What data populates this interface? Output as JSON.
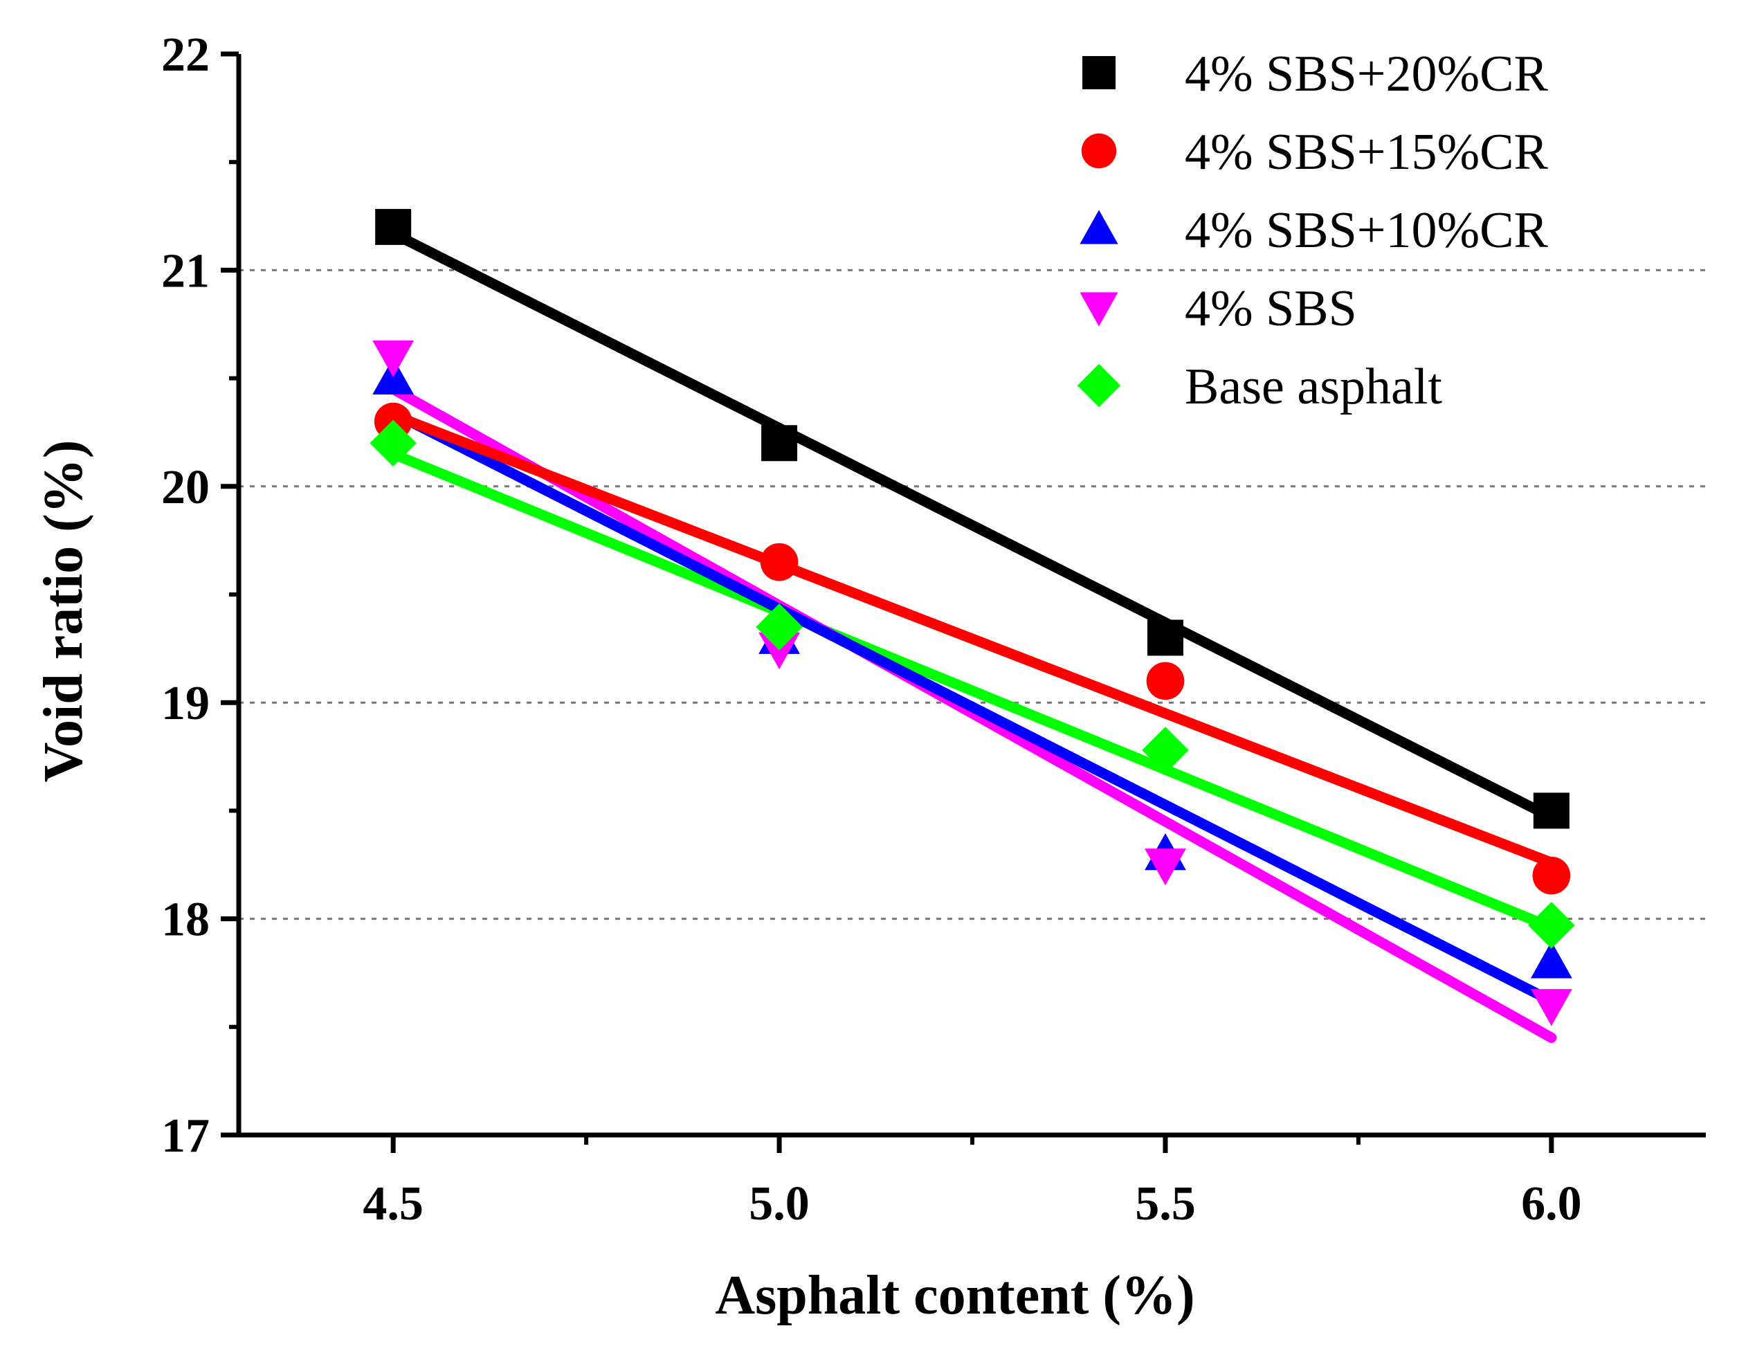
{
  "chart_data": {
    "type": "scatter",
    "title": "",
    "xlabel": "Asphalt content (%)",
    "ylabel": "Void ratio (%)",
    "xlim": [
      4.3,
      6.2
    ],
    "ylim": [
      17,
      22
    ],
    "x_ticks": [
      "4.5",
      "5.0",
      "5.5",
      "6.0"
    ],
    "y_ticks": [
      "17",
      "18",
      "19",
      "20",
      "21",
      "22"
    ],
    "grid_y_values": [
      18,
      19,
      20,
      21
    ],
    "legend_position": "top-right",
    "series": [
      {
        "name": "4% SBS+20%CR",
        "marker": "square",
        "color": "#000000",
        "x": [
          4.5,
          5.0,
          5.5,
          6.0
        ],
        "y": [
          21.2,
          20.2,
          19.3,
          18.5
        ],
        "fit": [
          [
            4.5,
            21.17
          ],
          [
            6.0,
            18.47
          ]
        ]
      },
      {
        "name": "4% SBS+15%CR",
        "marker": "circle",
        "color": "#ff0000",
        "x": [
          4.5,
          5.0,
          5.5,
          6.0
        ],
        "y": [
          20.3,
          19.65,
          19.1,
          18.2
        ],
        "fit": [
          [
            4.5,
            20.33
          ],
          [
            6.0,
            18.26
          ]
        ]
      },
      {
        "name": "4% SBS+10%CR",
        "marker": "triangle-up",
        "color": "#0000ff",
        "x": [
          4.5,
          5.0,
          5.5,
          6.0
        ],
        "y": [
          20.5,
          19.3,
          18.3,
          17.8
        ],
        "fit": [
          [
            4.5,
            20.34
          ],
          [
            6.0,
            17.62
          ]
        ]
      },
      {
        "name": "4% SBS",
        "marker": "triangle-down",
        "color": "#ff00ff",
        "x": [
          4.5,
          5.0,
          5.5,
          6.0
        ],
        "y": [
          20.6,
          19.25,
          18.25,
          17.6
        ],
        "fit": [
          [
            4.5,
            20.45
          ],
          [
            6.0,
            17.45
          ]
        ]
      },
      {
        "name": "Base asphalt",
        "marker": "diamond",
        "color": "#00ff00",
        "x": [
          4.5,
          5.0,
          5.5,
          6.0
        ],
        "y": [
          20.2,
          19.35,
          18.78,
          17.97
        ],
        "fit": [
          [
            4.5,
            20.15
          ],
          [
            6.0,
            17.96
          ]
        ]
      }
    ]
  }
}
